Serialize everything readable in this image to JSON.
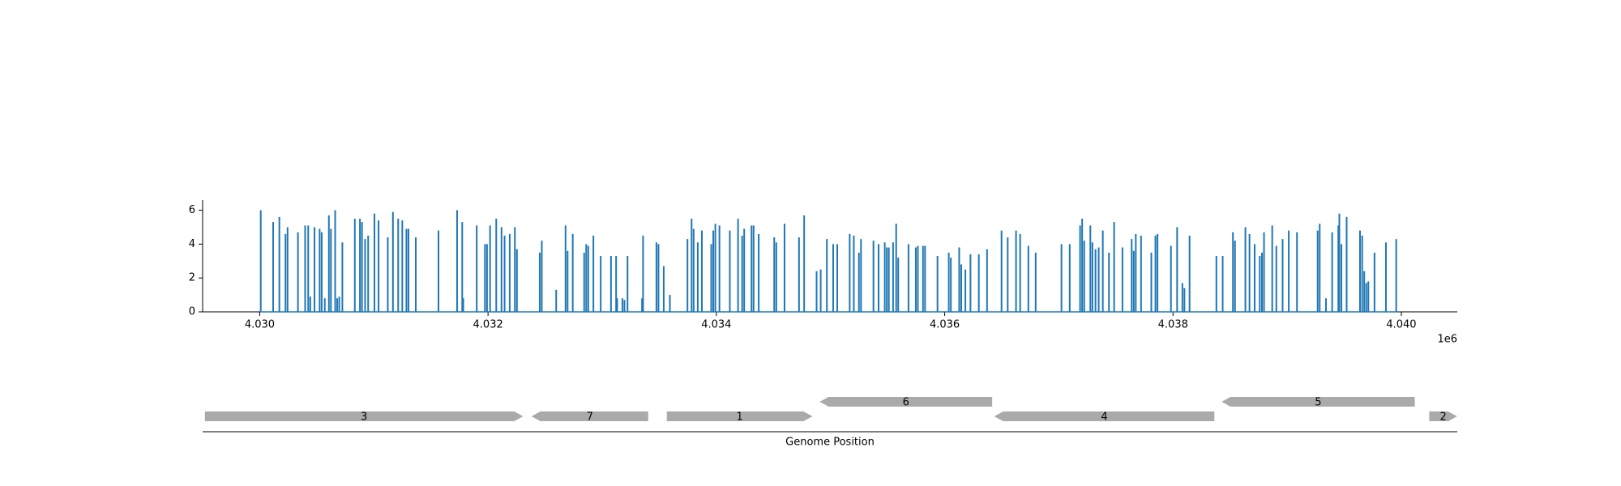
{
  "chart_data": {
    "type": "stem",
    "color": "#1f77b4",
    "xlim": [
      4029500,
      4040490
    ],
    "xticks": [
      {
        "value": 4030000,
        "label": "4.030"
      },
      {
        "value": 4032000,
        "label": "4.032"
      },
      {
        "value": 4034000,
        "label": "4.034"
      },
      {
        "value": 4036000,
        "label": "4.036"
      },
      {
        "value": 4038000,
        "label": "4.038"
      },
      {
        "value": 4040000,
        "label": "4.040"
      }
    ],
    "x_offset_label": "1e6",
    "ylim": [
      0,
      6.6
    ],
    "yticks": [
      0,
      2,
      4,
      6
    ],
    "xlabel": "Genome Position",
    "x": [
      4030009,
      4030118,
      4030172,
      4030226,
      4030244,
      4030335,
      4030398,
      4030425,
      4030443,
      4030480,
      4030525,
      4030543,
      4030570,
      4030606,
      4030624,
      4030661,
      4030679,
      4030697,
      4030724,
      4030833,
      4030878,
      4030896,
      4030923,
      4030950,
      4031005,
      4031041,
      4031122,
      4031167,
      4031213,
      4031249,
      4031285,
      4031303,
      4031367,
      4031566,
      4031729,
      4031774,
      4031783,
      4031901,
      4031973,
      4031991,
      4032018,
      4032072,
      4032118,
      4032145,
      4032190,
      4032235,
      4032253,
      4032453,
      4032471,
      4032597,
      4032679,
      4032697,
      4032742,
      4032842,
      4032860,
      4032878,
      4032923,
      4032987,
      4033077,
      4033122,
      4033131,
      4033177,
      4033195,
      4033222,
      4033349,
      4033358,
      4033475,
      4033493,
      4033539,
      4033593,
      4033747,
      4033783,
      4033801,
      4033837,
      4033873,
      4033955,
      4033973,
      4033991,
      4034027,
      4034118,
      4034190,
      4034226,
      4034244,
      4034308,
      4034326,
      4034371,
      4034507,
      4034525,
      4034597,
      4034724,
      4034769,
      4034878,
      4034914,
      4034968,
      4035023,
      4035059,
      4035168,
      4035204,
      4035249,
      4035267,
      4035376,
      4035421,
      4035475,
      4035493,
      4035511,
      4035548,
      4035575,
      4035593,
      4035683,
      4035747,
      4035765,
      4035810,
      4035828,
      4035937,
      4036036,
      4036054,
      4036127,
      4036145,
      4036181,
      4036226,
      4036299,
      4036371,
      4036498,
      4036552,
      4036625,
      4036661,
      4036733,
      4036797,
      4037023,
      4037095,
      4037186,
      4037204,
      4037222,
      4037276,
      4037294,
      4037321,
      4037349,
      4037385,
      4037439,
      4037484,
      4037557,
      4037638,
      4037656,
      4037674,
      4037720,
      4037810,
      4037846,
      4037864,
      4037982,
      4038036,
      4038082,
      4038100,
      4038145,
      4038380,
      4038435,
      4038525,
      4038543,
      4038634,
      4038670,
      4038715,
      4038760,
      4038779,
      4038797,
      4038869,
      4038905,
      4038960,
      4039014,
      4039086,
      4039267,
      4039285,
      4039340,
      4039394,
      4039448,
      4039457,
      4039475,
      4039521,
      4039638,
      4039657,
      4039675,
      4039693,
      4039711,
      4039765,
      4039865,
      4039955
    ],
    "values": [
      6.0,
      5.3,
      5.6,
      4.6,
      5.0,
      4.7,
      5.1,
      5.1,
      0.9,
      5.0,
      4.9,
      4.7,
      0.8,
      5.7,
      4.9,
      6.0,
      0.8,
      0.9,
      4.1,
      5.5,
      5.5,
      5.3,
      4.3,
      4.5,
      5.8,
      5.4,
      4.4,
      5.9,
      5.5,
      5.4,
      4.9,
      4.9,
      4.4,
      4.8,
      6.0,
      5.3,
      0.8,
      5.1,
      4.0,
      4.0,
      5.1,
      5.5,
      5.0,
      4.5,
      4.6,
      5.0,
      3.7,
      3.5,
      4.2,
      1.3,
      5.1,
      3.6,
      4.6,
      3.5,
      4.0,
      3.9,
      4.5,
      3.3,
      3.3,
      3.3,
      0.8,
      0.8,
      0.7,
      3.3,
      0.8,
      4.5,
      4.1,
      4.0,
      2.7,
      1.0,
      4.3,
      5.5,
      4.9,
      4.1,
      4.8,
      4.0,
      4.8,
      5.2,
      5.1,
      4.8,
      5.5,
      4.5,
      4.9,
      5.1,
      5.1,
      4.6,
      4.4,
      4.1,
      5.2,
      4.4,
      5.7,
      2.4,
      2.5,
      4.3,
      4.0,
      4.0,
      4.6,
      4.5,
      3.5,
      4.3,
      4.2,
      4.0,
      4.1,
      3.8,
      3.8,
      4.1,
      5.2,
      3.2,
      4.0,
      3.8,
      3.9,
      3.9,
      3.9,
      3.3,
      3.5,
      3.2,
      3.8,
      2.8,
      2.5,
      3.4,
      3.4,
      3.7,
      4.8,
      4.4,
      4.8,
      4.6,
      3.9,
      3.5,
      4.0,
      4.0,
      5.1,
      5.5,
      4.2,
      5.1,
      4.1,
      3.7,
      3.8,
      4.8,
      3.5,
      5.3,
      3.8,
      4.3,
      3.6,
      4.6,
      4.5,
      3.5,
      4.5,
      4.6,
      3.9,
      5.0,
      1.7,
      1.4,
      4.5,
      3.3,
      3.3,
      4.7,
      4.2,
      5.0,
      4.6,
      4.0,
      3.3,
      3.5,
      4.7,
      5.1,
      3.9,
      4.3,
      4.8,
      4.7,
      4.8,
      5.2,
      0.8,
      4.7,
      5.1,
      5.8,
      4.0,
      5.6,
      4.8,
      4.5,
      2.4,
      1.7,
      1.8,
      3.5,
      4.1,
      4.3
    ],
    "features_color": "#aaaaaa",
    "features": [
      {
        "label": "3",
        "start": 4029520,
        "end": 4032308,
        "strand": "+"
      },
      {
        "label": "7",
        "start": 4032380,
        "end": 4033403,
        "strand": "-"
      },
      {
        "label": "1",
        "start": 4033566,
        "end": 4034842,
        "strand": "+"
      },
      {
        "label": "6",
        "start": 4034905,
        "end": 4036416,
        "strand": "-"
      },
      {
        "label": "4",
        "start": 4036434,
        "end": 4038362,
        "strand": "-"
      },
      {
        "label": "5",
        "start": 4038426,
        "end": 4040118,
        "strand": "-"
      },
      {
        "label": "2",
        "start": 4040244,
        "end": 4040489,
        "strand": "+"
      }
    ]
  }
}
